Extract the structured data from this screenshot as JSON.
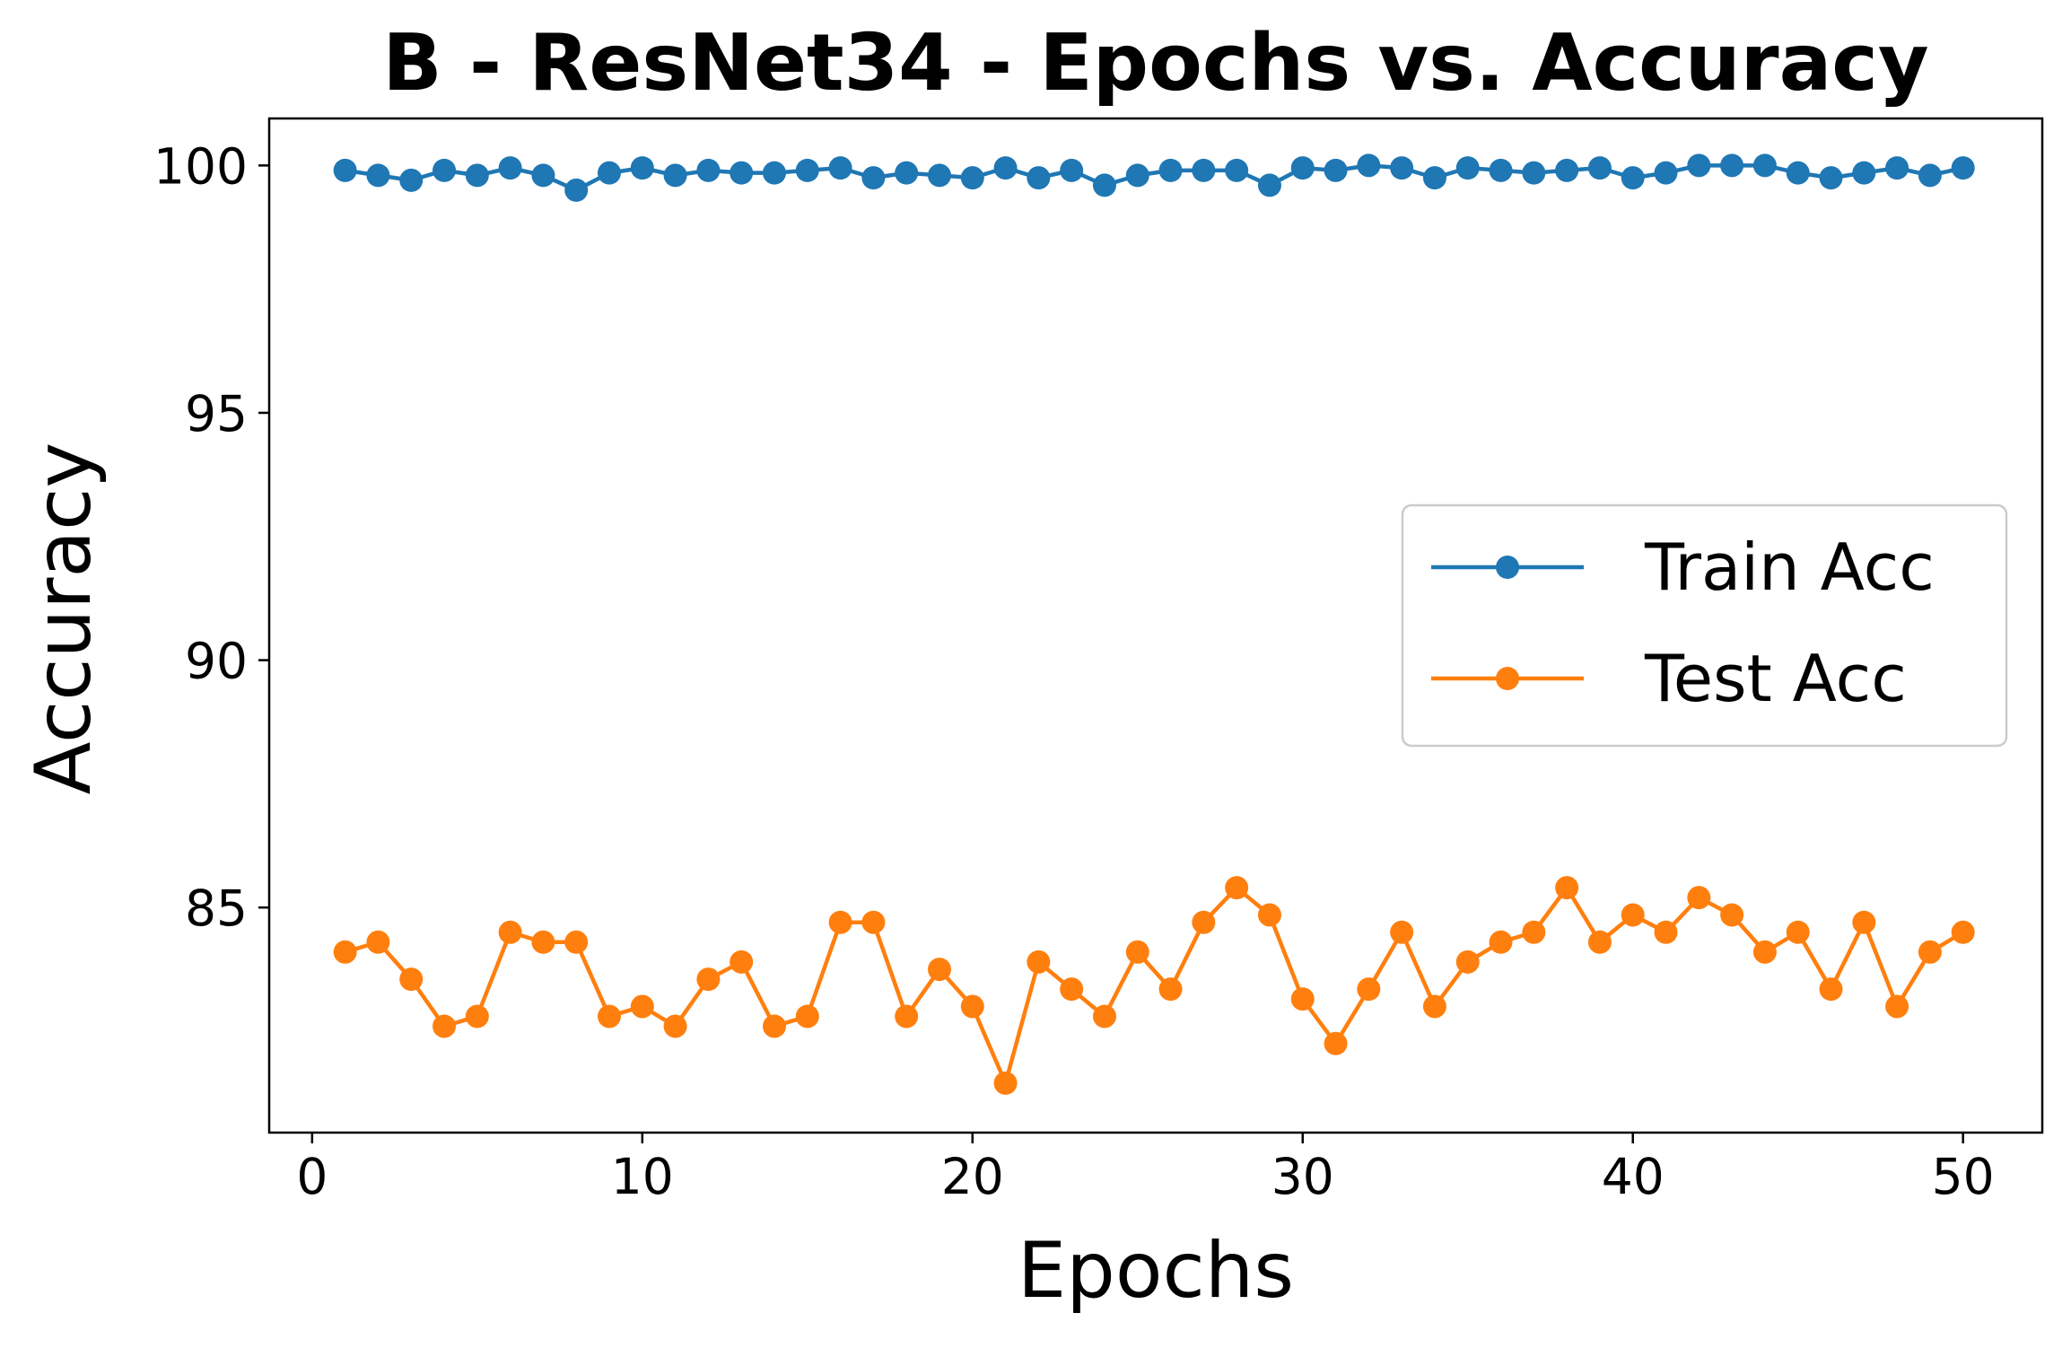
{
  "chart_data": {
    "type": "line",
    "title": "B - ResNet34 - Epochs vs. Accuracy",
    "xlabel": "Epochs",
    "ylabel": "Accuracy",
    "xlim": [
      -1.3,
      52.4
    ],
    "ylim": [
      80.45,
      100.95
    ],
    "xticks": [
      0,
      10,
      20,
      30,
      40,
      50
    ],
    "yticks": [
      85,
      90,
      95,
      100
    ],
    "grid": false,
    "legend_position": "center-right",
    "x": [
      1,
      2,
      3,
      4,
      5,
      6,
      7,
      8,
      9,
      10,
      11,
      12,
      13,
      14,
      15,
      16,
      17,
      18,
      19,
      20,
      21,
      22,
      23,
      24,
      25,
      26,
      27,
      28,
      29,
      30,
      31,
      32,
      33,
      34,
      35,
      36,
      37,
      38,
      39,
      40,
      41,
      42,
      43,
      44,
      45,
      46,
      47,
      48,
      49,
      50
    ],
    "series": [
      {
        "name": "Train Acc",
        "color": "#1f77b4",
        "marker": "circle",
        "values": [
          99.9,
          99.8,
          99.7,
          99.9,
          99.8,
          99.95,
          99.8,
          99.5,
          99.85,
          99.95,
          99.8,
          99.9,
          99.85,
          99.85,
          99.9,
          99.95,
          99.75,
          99.85,
          99.8,
          99.75,
          99.95,
          99.75,
          99.9,
          99.6,
          99.8,
          99.9,
          99.9,
          99.9,
          99.6,
          99.95,
          99.9,
          100.0,
          99.95,
          99.75,
          99.95,
          99.9,
          99.85,
          99.9,
          99.95,
          99.75,
          99.85,
          100.0,
          100.0,
          100.0,
          99.85,
          99.75,
          99.85,
          99.95,
          99.8,
          99.95
        ]
      },
      {
        "name": "Test Acc",
        "color": "#ff7f0e",
        "marker": "circle",
        "values": [
          84.1,
          84.3,
          83.55,
          82.6,
          82.8,
          84.5,
          84.3,
          84.3,
          82.8,
          83.0,
          82.6,
          83.55,
          83.9,
          82.6,
          82.8,
          84.7,
          84.7,
          82.8,
          83.75,
          83.0,
          81.45,
          83.9,
          83.35,
          82.8,
          84.1,
          83.35,
          84.7,
          85.4,
          84.85,
          83.15,
          82.25,
          83.35,
          84.5,
          83.0,
          83.9,
          84.3,
          84.5,
          85.4,
          84.3,
          84.85,
          84.5,
          85.2,
          84.85,
          84.1,
          84.5,
          83.35,
          84.7,
          83.0,
          84.1,
          84.5
        ]
      }
    ]
  }
}
